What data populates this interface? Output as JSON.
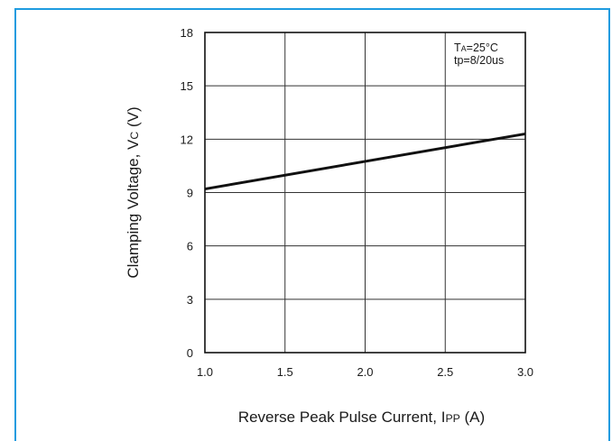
{
  "chart_data": {
    "type": "line",
    "title": "",
    "xlabel": "Reverse Peak Pulse Current, IPP (A)",
    "xlabel_parts": {
      "main": "Reverse Peak Pulse Current, I",
      "sub": "PP",
      "unit": " (A)"
    },
    "ylabel": "Clamping Voltage, VC (V)",
    "ylabel_parts": {
      "main": "Clamping Voltage, V",
      "sub": "C",
      "unit": " (V)"
    },
    "xlim": [
      1.0,
      3.0
    ],
    "ylim": [
      0,
      18
    ],
    "x_ticks": [
      "1.0",
      "1.5",
      "2.0",
      "2.5",
      "3.0"
    ],
    "y_ticks": [
      "0",
      "3",
      "6",
      "9",
      "12",
      "15",
      "18"
    ],
    "grid": true,
    "series": [
      {
        "x": [
          1.0,
          3.0
        ],
        "y": [
          9.2,
          12.3
        ]
      }
    ],
    "annotations": [
      {
        "main": "T",
        "sub": "A",
        "rest": "=25°C"
      },
      {
        "main": "tp=8/20us",
        "sub": "",
        "rest": ""
      }
    ],
    "annotation_position": "top-right",
    "colors": {
      "line": "#111111",
      "grid": "#333333",
      "frame": "#1e9be0"
    }
  }
}
